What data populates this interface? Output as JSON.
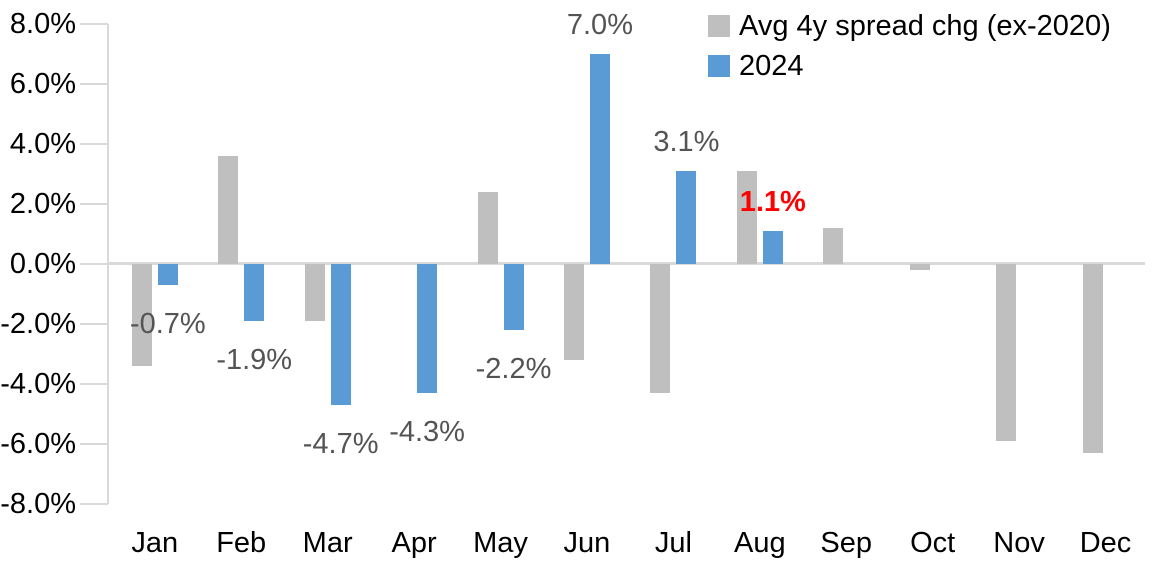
{
  "chart_data": {
    "type": "bar",
    "title": "",
    "categories": [
      "Jan",
      "Feb",
      "Mar",
      "Apr",
      "May",
      "Jun",
      "Jul",
      "Aug",
      "Sep",
      "Oct",
      "Nov",
      "Dec"
    ],
    "series": [
      {
        "name": "Avg 4y spread chg (ex-2020)",
        "color": "#BFBFBF",
        "values": [
          -3.4,
          3.6,
          -1.9,
          0.0,
          2.4,
          -3.2,
          -4.3,
          3.1,
          1.2,
          -0.2,
          -5.9,
          -6.3
        ]
      },
      {
        "name": "2024",
        "color": "#5B9BD5",
        "values": [
          -0.7,
          -1.9,
          -4.7,
          -4.3,
          -2.2,
          7.0,
          3.1,
          1.1,
          null,
          null,
          null,
          null
        ]
      }
    ],
    "data_labels": [
      {
        "category": "Jan",
        "series": "2024",
        "text": "-0.7%",
        "value": -0.7,
        "color": "#545454",
        "bold": false
      },
      {
        "category": "Feb",
        "series": "2024",
        "text": "-1.9%",
        "value": -1.9,
        "color": "#545454",
        "bold": false
      },
      {
        "category": "Mar",
        "series": "2024",
        "text": "-4.7%",
        "value": -4.7,
        "color": "#545454",
        "bold": false
      },
      {
        "category": "Apr",
        "series": "2024",
        "text": "-4.3%",
        "value": -4.3,
        "color": "#545454",
        "bold": false
      },
      {
        "category": "May",
        "series": "2024",
        "text": "-2.2%",
        "value": -2.2,
        "color": "#545454",
        "bold": false
      },
      {
        "category": "Jun",
        "series": "2024",
        "text": "7.0%",
        "value": 7.0,
        "color": "#545454",
        "bold": false
      },
      {
        "category": "Jul",
        "series": "2024",
        "text": "3.1%",
        "value": 3.1,
        "color": "#545454",
        "bold": false
      },
      {
        "category": "Aug",
        "series": "2024",
        "text": "1.1%",
        "value": 1.1,
        "color": "#FF0000",
        "bold": true
      }
    ],
    "y_axis": {
      "min": -8,
      "max": 8,
      "step": 2,
      "tick_labels": [
        "8.0%",
        "6.0%",
        "4.0%",
        "2.0%",
        "0.0%",
        "-2.0%",
        "-4.0%",
        "-6.0%",
        "-8.0%"
      ]
    },
    "xlabel": "",
    "ylabel": "",
    "legend_position": "top-right",
    "grid": false,
    "axis_color": "#D9D9D9"
  }
}
